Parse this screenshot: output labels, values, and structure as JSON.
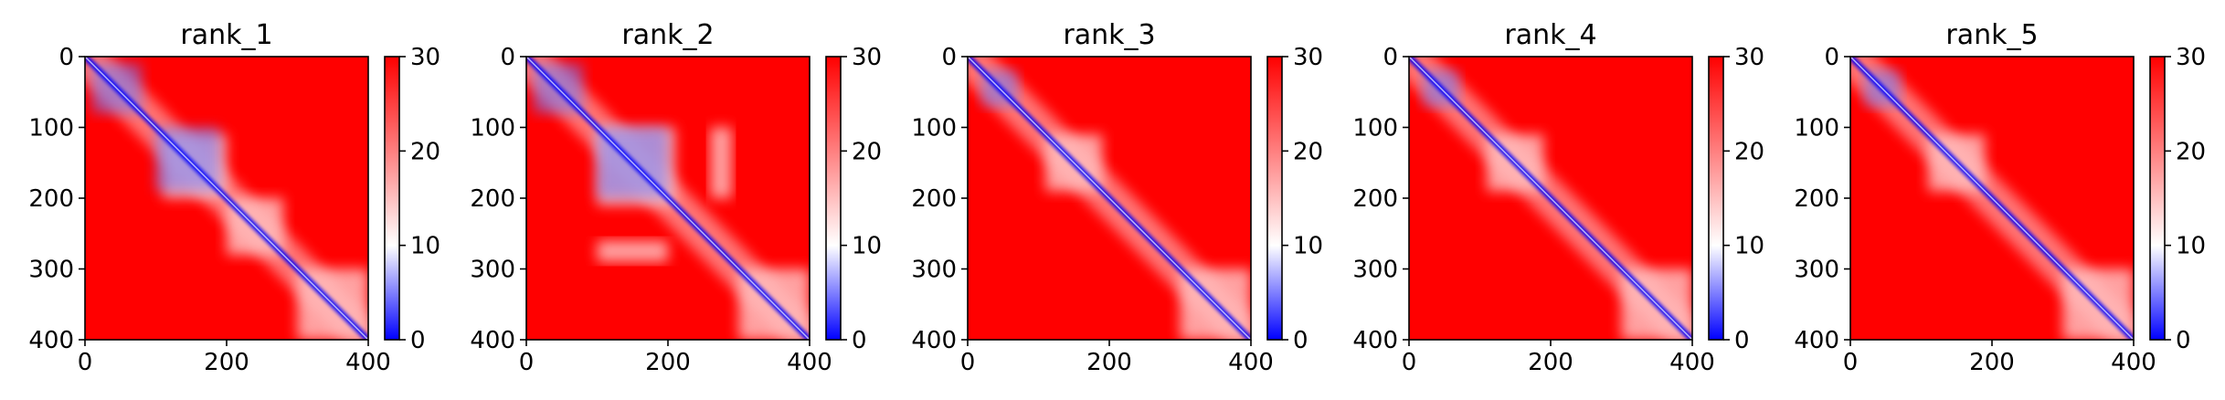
{
  "chart_data": [
    {
      "type": "heatmap",
      "title": "rank_1",
      "xlim": [
        0,
        400
      ],
      "ylim": [
        400,
        0
      ],
      "x_ticks": [
        0,
        200,
        400
      ],
      "y_ticks": [
        0,
        100,
        200,
        300,
        400
      ],
      "colorbar": {
        "range": [
          0,
          30
        ],
        "ticks": [
          0,
          10,
          20,
          30
        ],
        "colormap": "bwr",
        "colors": [
          "#0000ff",
          "#ffffff",
          "#ff0000"
        ]
      },
      "features": {
        "diagonal_blue_band": true,
        "blue_blocks": [
          {
            "from": 10,
            "to": 80
          },
          {
            "from": 100,
            "to": 190
          }
        ],
        "light_regions": [
          {
            "x": [
              110,
              200
            ],
            "y": [
              110,
              200
            ]
          },
          {
            "x": [
              300,
              400
            ],
            "y": [
              300,
              400
            ]
          },
          {
            "x": [
              200,
              280
            ],
            "y": [
              200,
              280
            ]
          }
        ]
      }
    },
    {
      "type": "heatmap",
      "title": "rank_2",
      "xlim": [
        0,
        400
      ],
      "ylim": [
        400,
        0
      ],
      "x_ticks": [
        0,
        200,
        400
      ],
      "y_ticks": [
        0,
        100,
        200,
        300,
        400
      ],
      "colorbar": {
        "range": [
          0,
          30
        ],
        "ticks": [
          0,
          10,
          20,
          30
        ],
        "colormap": "bwr",
        "colors": [
          "#0000ff",
          "#ffffff",
          "#ff0000"
        ]
      },
      "features": {
        "diagonal_blue_band": true,
        "blue_blocks": [
          {
            "from": 10,
            "to": 80
          },
          {
            "from": 100,
            "to": 200
          }
        ],
        "light_regions": [
          {
            "x": [
              100,
              210
            ],
            "y": [
              100,
              210
            ]
          },
          {
            "x": [
              100,
              200
            ],
            "y": [
              260,
              290
            ]
          },
          {
            "x": [
              300,
              400
            ],
            "y": [
              300,
              400
            ]
          }
        ]
      }
    },
    {
      "type": "heatmap",
      "title": "rank_3",
      "xlim": [
        0,
        400
      ],
      "ylim": [
        400,
        0
      ],
      "x_ticks": [
        0,
        200,
        400
      ],
      "y_ticks": [
        0,
        100,
        200,
        300,
        400
      ],
      "colorbar": {
        "range": [
          0,
          30
        ],
        "ticks": [
          0,
          10,
          20,
          30
        ],
        "colormap": "bwr",
        "colors": [
          "#0000ff",
          "#ffffff",
          "#ff0000"
        ]
      },
      "features": {
        "diagonal_blue_band": true,
        "blue_blocks": [
          {
            "from": 20,
            "to": 70
          }
        ],
        "light_regions": [
          {
            "x": [
              110,
              190
            ],
            "y": [
              110,
              190
            ]
          },
          {
            "x": [
              300,
              400
            ],
            "y": [
              300,
              400
            ]
          }
        ]
      }
    },
    {
      "type": "heatmap",
      "title": "rank_4",
      "xlim": [
        0,
        400
      ],
      "ylim": [
        400,
        0
      ],
      "x_ticks": [
        0,
        200,
        400
      ],
      "y_ticks": [
        0,
        100,
        200,
        300,
        400
      ],
      "colorbar": {
        "range": [
          0,
          30
        ],
        "ticks": [
          0,
          10,
          20,
          30
        ],
        "colormap": "bwr",
        "colors": [
          "#0000ff",
          "#ffffff",
          "#ff0000"
        ]
      },
      "features": {
        "diagonal_blue_band": true,
        "blue_blocks": [
          {
            "from": 20,
            "to": 70
          }
        ],
        "light_regions": [
          {
            "x": [
              110,
              190
            ],
            "y": [
              110,
              190
            ]
          },
          {
            "x": [
              300,
              400
            ],
            "y": [
              300,
              400
            ]
          }
        ]
      }
    },
    {
      "type": "heatmap",
      "title": "rank_5",
      "xlim": [
        0,
        400
      ],
      "ylim": [
        400,
        0
      ],
      "x_ticks": [
        0,
        200,
        400
      ],
      "y_ticks": [
        0,
        100,
        200,
        300,
        400
      ],
      "colorbar": {
        "range": [
          0,
          30
        ],
        "ticks": [
          0,
          10,
          20,
          30
        ],
        "colormap": "bwr",
        "colors": [
          "#0000ff",
          "#ffffff",
          "#ff0000"
        ]
      },
      "features": {
        "diagonal_blue_band": true,
        "blue_blocks": [
          {
            "from": 20,
            "to": 70
          }
        ],
        "light_regions": [
          {
            "x": [
              110,
              190
            ],
            "y": [
              110,
              190
            ]
          },
          {
            "x": [
              300,
              400
            ],
            "y": [
              300,
              400
            ]
          }
        ]
      }
    }
  ]
}
